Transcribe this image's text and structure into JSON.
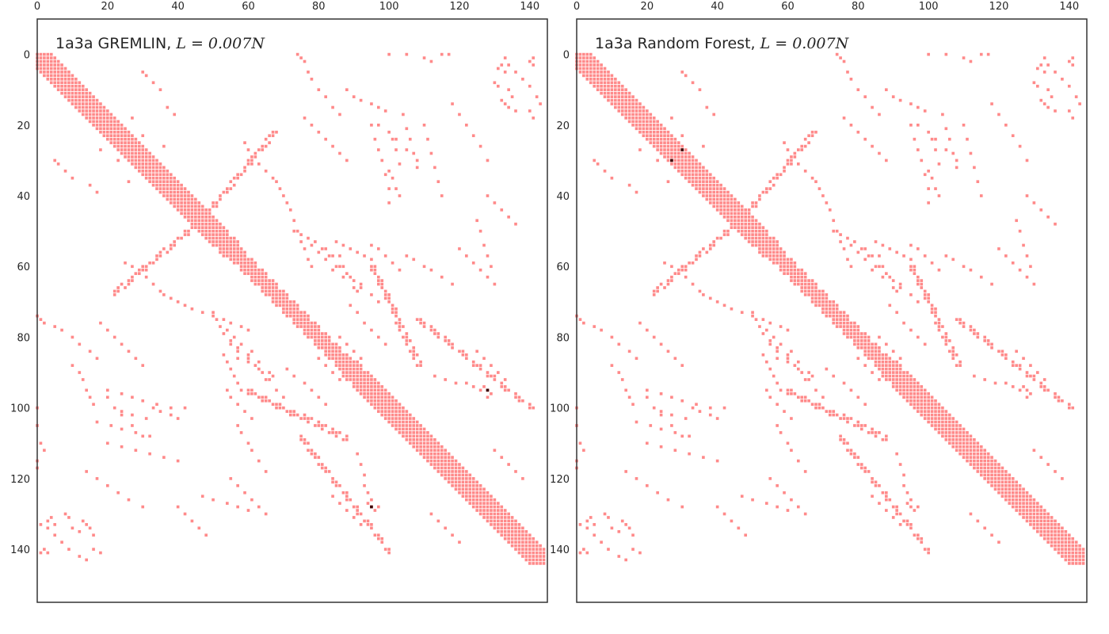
{
  "chart_data": [
    {
      "type": "heatmap",
      "title_plain": "1a3a GREMLIN, ",
      "title_math": "L = 0.007N",
      "xlim": [
        0,
        145
      ],
      "ylim": [
        155,
        -10
      ],
      "x_ticks": [
        "0",
        "20",
        "40",
        "60",
        "80",
        "100",
        "120",
        "140"
      ],
      "y_ticks": [
        "0",
        "20",
        "40",
        "60",
        "80",
        "100",
        "120",
        "140"
      ],
      "grid": false,
      "contact_color": "#ff8a8a",
      "predicted_color": "#3a0000",
      "predicted_contacts": [
        [
          128,
          95
        ],
        [
          95,
          128
        ]
      ]
    },
    {
      "type": "heatmap",
      "title_plain": "1a3a Random Forest, ",
      "title_math": "L = 0.007N",
      "xlim": [
        0,
        145
      ],
      "ylim": [
        155,
        -10
      ],
      "x_ticks": [
        "0",
        "20",
        "40",
        "60",
        "80",
        "100",
        "120",
        "140"
      ],
      "y_ticks": [
        "0",
        "20",
        "40",
        "60",
        "80",
        "100",
        "120",
        "140"
      ],
      "grid": false,
      "contact_color": "#ff8a8a",
      "predicted_color": "#3a0000",
      "predicted_contacts": [
        [
          30,
          27
        ],
        [
          27,
          30
        ]
      ]
    }
  ],
  "contact_map": {
    "n": 145,
    "diagonal_segments": [
      {
        "start": 0,
        "end": 55,
        "halfwidth": 4
      },
      {
        "start": 55,
        "end": 90,
        "halfwidth": 3
      },
      {
        "start": 90,
        "end": 145,
        "halfwidth": 4
      }
    ],
    "anti_diagonal_bands": [
      {
        "from": [
          22,
          67
        ],
        "to": [
          45,
          48
        ],
        "halfwidth": 1
      },
      {
        "from": [
          60,
          95
        ],
        "to": [
          88,
          108
        ],
        "halfwidth": 1
      },
      {
        "from": [
          75,
          108
        ],
        "to": [
          100,
          140
        ],
        "halfwidth": 1
      }
    ],
    "scatter_pairs": [
      [
        0,
        74
      ],
      [
        1,
        75
      ],
      [
        2,
        76
      ],
      [
        5,
        77
      ],
      [
        7,
        78
      ],
      [
        10,
        80
      ],
      [
        12,
        82
      ],
      [
        15,
        84
      ],
      [
        17,
        86
      ],
      [
        0,
        100
      ],
      [
        0,
        105
      ],
      [
        1,
        110
      ],
      [
        2,
        112
      ],
      [
        0,
        115
      ],
      [
        0,
        117
      ],
      [
        1,
        141
      ],
      [
        2,
        140
      ],
      [
        3,
        141
      ],
      [
        3,
        132
      ],
      [
        4,
        131
      ],
      [
        5,
        133
      ],
      [
        8,
        130
      ],
      [
        9,
        131
      ],
      [
        10,
        134
      ],
      [
        10,
        88
      ],
      [
        12,
        90
      ],
      [
        13,
        92
      ],
      [
        14,
        95
      ],
      [
        15,
        97
      ],
      [
        16,
        99
      ],
      [
        20,
        97
      ],
      [
        22,
        100
      ],
      [
        24,
        102
      ],
      [
        27,
        105
      ],
      [
        30,
        108
      ],
      [
        33,
        100
      ],
      [
        35,
        101
      ],
      [
        38,
        102
      ],
      [
        40,
        103
      ],
      [
        42,
        100
      ],
      [
        19,
        22
      ],
      [
        20,
        23
      ],
      [
        21,
        25
      ],
      [
        18,
        27
      ],
      [
        23,
        30
      ],
      [
        26,
        36
      ],
      [
        5,
        30
      ],
      [
        6,
        31
      ],
      [
        8,
        33
      ],
      [
        10,
        35
      ],
      [
        15,
        37
      ],
      [
        17,
        39
      ],
      [
        25,
        59
      ],
      [
        27,
        60
      ],
      [
        29,
        61
      ],
      [
        31,
        63
      ],
      [
        33,
        65
      ],
      [
        35,
        67
      ],
      [
        36,
        68
      ],
      [
        38,
        69
      ],
      [
        40,
        70
      ],
      [
        42,
        71
      ],
      [
        44,
        72
      ],
      [
        47,
        73
      ],
      [
        50,
        74
      ],
      [
        53,
        75
      ],
      [
        55,
        76
      ],
      [
        58,
        77
      ],
      [
        60,
        78
      ],
      [
        52,
        77
      ],
      [
        54,
        78
      ],
      [
        56,
        80
      ],
      [
        58,
        82
      ],
      [
        61,
        84
      ],
      [
        63,
        87
      ],
      [
        66,
        90
      ],
      [
        67,
        91
      ],
      [
        55,
        82
      ],
      [
        57,
        84
      ],
      [
        60,
        86
      ],
      [
        63,
        89
      ],
      [
        65,
        92
      ],
      [
        68,
        95
      ],
      [
        70,
        97
      ],
      [
        53,
        85
      ],
      [
        54,
        87
      ],
      [
        55,
        89
      ],
      [
        56,
        91
      ],
      [
        57,
        93
      ],
      [
        58,
        95
      ],
      [
        73,
        50
      ],
      [
        75,
        51
      ],
      [
        77,
        52
      ],
      [
        79,
        53
      ],
      [
        81,
        55
      ],
      [
        83,
        57
      ],
      [
        85,
        60
      ],
      [
        86,
        57
      ],
      [
        87,
        60
      ],
      [
        88,
        62
      ],
      [
        90,
        64
      ],
      [
        92,
        66
      ],
      [
        95,
        54
      ],
      [
        97,
        55
      ],
      [
        99,
        57
      ],
      [
        101,
        59
      ],
      [
        103,
        61
      ],
      [
        105,
        57
      ],
      [
        107,
        58
      ],
      [
        110,
        60
      ],
      [
        112,
        61
      ],
      [
        115,
        63
      ],
      [
        118,
        65
      ],
      [
        89,
        71
      ],
      [
        91,
        73
      ],
      [
        93,
        76
      ],
      [
        95,
        78
      ],
      [
        97,
        80
      ],
      [
        99,
        82
      ],
      [
        76,
        18
      ],
      [
        78,
        20
      ],
      [
        80,
        22
      ],
      [
        82,
        24
      ],
      [
        84,
        26
      ],
      [
        86,
        28
      ],
      [
        88,
        30
      ],
      [
        95,
        20
      ],
      [
        96,
        24
      ],
      [
        97,
        27
      ],
      [
        98,
        30
      ],
      [
        99,
        34
      ],
      [
        100,
        38
      ],
      [
        100,
        22
      ],
      [
        101,
        24
      ],
      [
        102,
        27
      ],
      [
        103,
        31
      ],
      [
        104,
        17
      ],
      [
        105,
        21
      ],
      [
        106,
        24
      ],
      [
        107,
        28
      ],
      [
        108,
        32
      ],
      [
        110,
        20
      ],
      [
        111,
        24
      ],
      [
        112,
        28
      ],
      [
        113,
        32
      ],
      [
        114,
        36
      ],
      [
        115,
        40
      ],
      [
        118,
        14
      ],
      [
        120,
        17
      ],
      [
        122,
        20
      ],
      [
        124,
        23
      ],
      [
        126,
        26
      ],
      [
        128,
        30
      ],
      [
        120,
        55
      ],
      [
        122,
        57
      ],
      [
        124,
        59
      ],
      [
        126,
        61
      ],
      [
        128,
        63
      ],
      [
        130,
        65
      ],
      [
        125,
        47
      ],
      [
        126,
        50
      ],
      [
        127,
        54
      ],
      [
        128,
        57
      ],
      [
        129,
        60
      ],
      [
        95,
        128
      ],
      [
        96,
        129
      ],
      [
        94,
        127
      ],
      [
        97,
        128
      ],
      [
        128,
        95
      ],
      [
        129,
        96
      ],
      [
        127,
        94
      ],
      [
        128,
        97
      ],
      [
        95,
        126
      ],
      [
        94,
        124
      ],
      [
        93,
        122
      ],
      [
        93,
        119
      ],
      [
        92,
        116
      ],
      [
        91,
        113
      ],
      [
        80,
        86
      ],
      [
        82,
        88
      ],
      [
        84,
        90
      ],
      [
        86,
        92
      ],
      [
        84,
        125
      ],
      [
        86,
        127
      ],
      [
        88,
        129
      ],
      [
        90,
        131
      ],
      [
        92,
        133
      ],
      [
        40,
        128
      ],
      [
        42,
        130
      ],
      [
        44,
        132
      ],
      [
        46,
        134
      ],
      [
        48,
        136
      ],
      [
        13,
        132
      ],
      [
        14,
        133
      ],
      [
        15,
        134
      ],
      [
        12,
        135
      ],
      [
        16,
        136
      ],
      [
        133,
        1
      ],
      [
        134,
        3
      ],
      [
        136,
        5
      ],
      [
        138,
        7
      ],
      [
        140,
        9
      ],
      [
        130,
        112
      ],
      [
        132,
        114
      ],
      [
        134,
        116
      ],
      [
        136,
        118
      ],
      [
        138,
        120
      ],
      [
        142,
        12
      ],
      [
        143,
        14
      ],
      [
        140,
        16
      ],
      [
        141,
        18
      ]
    ]
  }
}
